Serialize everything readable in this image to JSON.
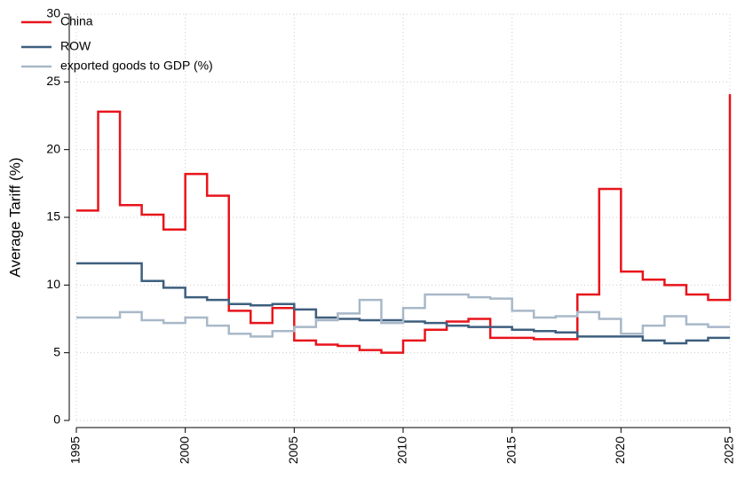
{
  "chart_data": {
    "type": "step",
    "ylabel": "Average Tariff (%)",
    "x": [
      1995,
      1996,
      1997,
      1998,
      1999,
      2000,
      2001,
      2002,
      2003,
      2004,
      2005,
      2006,
      2007,
      2008,
      2009,
      2010,
      2011,
      2012,
      2013,
      2014,
      2015,
      2016,
      2017,
      2018,
      2019,
      2020,
      2021,
      2022,
      2023,
      2024,
      2025
    ],
    "series": [
      {
        "name": "China",
        "color": "#e8141b",
        "values": [
          15.5,
          22.8,
          15.9,
          15.2,
          14.1,
          18.2,
          16.6,
          8.1,
          7.2,
          8.3,
          5.9,
          5.6,
          5.5,
          5.2,
          5.0,
          5.9,
          6.7,
          7.3,
          7.5,
          6.1,
          6.1,
          6.0,
          6.0,
          9.3,
          17.1,
          11.0,
          10.4,
          10.0,
          9.3,
          8.9,
          24.1
        ]
      },
      {
        "name": "ROW",
        "color": "#3e5f7e",
        "values": [
          11.6,
          11.6,
          11.6,
          10.3,
          9.8,
          9.1,
          8.9,
          8.6,
          8.5,
          8.6,
          8.2,
          7.6,
          7.5,
          7.4,
          7.4,
          7.3,
          7.2,
          7.0,
          6.9,
          6.9,
          6.7,
          6.6,
          6.5,
          6.2,
          6.2,
          6.2,
          5.9,
          5.7,
          5.9,
          6.1,
          6.1
        ]
      },
      {
        "name": "exported goods to GDP (%)",
        "color": "#a8b8c8",
        "values": [
          7.6,
          7.6,
          8.0,
          7.4,
          7.2,
          7.6,
          7.0,
          6.4,
          6.2,
          6.6,
          6.9,
          7.4,
          7.9,
          8.9,
          7.2,
          8.3,
          9.3,
          9.3,
          9.1,
          9.0,
          8.1,
          7.6,
          7.7,
          8.0,
          7.5,
          6.4,
          7.0,
          7.7,
          7.1,
          6.9,
          6.9
        ]
      }
    ],
    "xlim": [
      1995,
      2025
    ],
    "xticks": [
      1995,
      2000,
      2005,
      2010,
      2015,
      2020,
      2025
    ],
    "ylim": [
      0,
      30
    ],
    "yticks": [
      0,
      5,
      10,
      15,
      20,
      25,
      30
    ],
    "grid": true,
    "legend": "upper-left"
  }
}
